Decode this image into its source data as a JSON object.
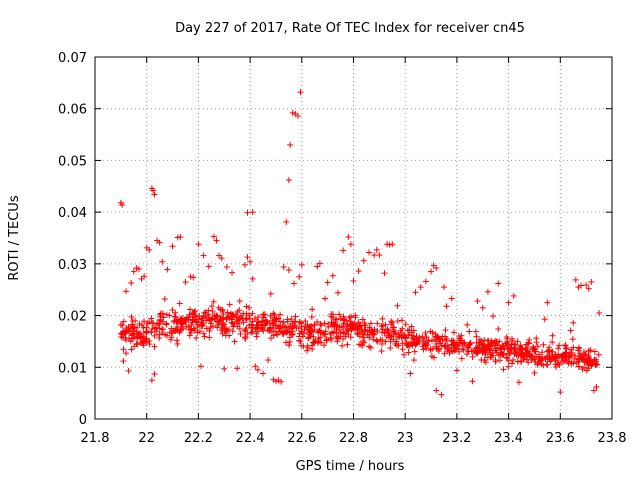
{
  "chart_data": {
    "type": "scatter",
    "title": "Day 227 of 2017, Rate Of TEC Index for receiver cn45",
    "xlabel": "GPS time / hours",
    "ylabel": "ROTI / TECUs",
    "xlim": [
      21.8,
      23.8
    ],
    "ylim": [
      0,
      0.07
    ],
    "xticks": [
      "21.8",
      "22",
      "22.2",
      "22.4",
      "22.6",
      "22.8",
      "23",
      "23.2",
      "23.4",
      "23.6",
      "23.8"
    ],
    "yticks": [
      "0",
      "0.01",
      "0.02",
      "0.03",
      "0.04",
      "0.05",
      "0.06",
      "0.07"
    ],
    "grid": true,
    "marker": "+",
    "color": "#ff0000",
    "series": [
      {
        "values": [
          [
            21.9,
            0.0418
          ],
          [
            21.905,
            0.0414
          ],
          [
            22.02,
            0.0446
          ],
          [
            22.025,
            0.0442
          ],
          [
            22.03,
            0.0434
          ],
          [
            22.39,
            0.0399
          ],
          [
            22.41,
            0.04
          ],
          [
            22.54,
            0.0381
          ],
          [
            22.55,
            0.0462
          ],
          [
            22.555,
            0.053
          ],
          [
            22.565,
            0.0592
          ],
          [
            22.575,
            0.059
          ],
          [
            22.585,
            0.0586
          ],
          [
            22.595,
            0.0632
          ],
          [
            21.9,
            0.0182
          ],
          [
            21.91,
            0.0112
          ],
          [
            21.92,
            0.0247
          ],
          [
            21.93,
            0.0093
          ],
          [
            21.94,
            0.0263
          ],
          [
            21.95,
            0.0285
          ],
          [
            21.96,
            0.0292
          ],
          [
            21.97,
            0.029
          ],
          [
            21.98,
            0.0271
          ],
          [
            21.99,
            0.0276
          ],
          [
            22.0,
            0.0331
          ],
          [
            22.01,
            0.0327
          ],
          [
            22.02,
            0.0075
          ],
          [
            22.03,
            0.0087
          ],
          [
            22.04,
            0.0345
          ],
          [
            22.05,
            0.0341
          ],
          [
            22.06,
            0.0304
          ],
          [
            22.07,
            0.0232
          ],
          [
            22.08,
            0.0289
          ],
          [
            22.1,
            0.0334
          ],
          [
            22.12,
            0.0351
          ],
          [
            22.13,
            0.0352
          ],
          [
            22.15,
            0.0265
          ],
          [
            22.17,
            0.0275
          ],
          [
            22.18,
            0.0274
          ],
          [
            22.2,
            0.0338
          ],
          [
            22.21,
            0.0102
          ],
          [
            22.22,
            0.0316
          ],
          [
            22.24,
            0.0295
          ],
          [
            22.26,
            0.0353
          ],
          [
            22.27,
            0.0345
          ],
          [
            22.28,
            0.0316
          ],
          [
            22.29,
            0.0311
          ],
          [
            22.3,
            0.0097
          ],
          [
            22.31,
            0.0294
          ],
          [
            22.33,
            0.0283
          ],
          [
            22.35,
            0.0098
          ],
          [
            22.36,
            0.0228
          ],
          [
            22.38,
            0.0298
          ],
          [
            22.39,
            0.0313
          ],
          [
            22.4,
            0.0304
          ],
          [
            22.41,
            0.0271
          ],
          [
            22.42,
            0.0102
          ],
          [
            22.43,
            0.0095
          ],
          [
            22.45,
            0.0088
          ],
          [
            22.47,
            0.0114
          ],
          [
            22.48,
            0.0242
          ],
          [
            22.49,
            0.0076
          ],
          [
            22.5,
            0.0073
          ],
          [
            22.51,
            0.0075
          ],
          [
            22.52,
            0.0072
          ],
          [
            22.53,
            0.0294
          ],
          [
            22.55,
            0.0288
          ],
          [
            22.57,
            0.0262
          ],
          [
            22.59,
            0.0275
          ],
          [
            22.6,
            0.0298
          ],
          [
            22.62,
            0.0132
          ],
          [
            22.64,
            0.0212
          ],
          [
            22.66,
            0.0295
          ],
          [
            22.67,
            0.0301
          ],
          [
            22.69,
            0.0233
          ],
          [
            22.7,
            0.0264
          ],
          [
            22.72,
            0.0277
          ],
          [
            22.74,
            0.0244
          ],
          [
            22.76,
            0.0326
          ],
          [
            22.78,
            0.0352
          ],
          [
            22.79,
            0.0338
          ],
          [
            22.8,
            0.0267
          ],
          [
            22.82,
            0.0286
          ],
          [
            22.84,
            0.0306
          ],
          [
            22.86,
            0.0322
          ],
          [
            22.88,
            0.0317
          ],
          [
            22.89,
            0.0327
          ],
          [
            22.9,
            0.0317
          ],
          [
            22.92,
            0.0282
          ],
          [
            22.93,
            0.0338
          ],
          [
            22.94,
            0.0337
          ],
          [
            22.95,
            0.0338
          ],
          [
            22.97,
            0.0219
          ],
          [
            22.99,
            0.0135
          ],
          [
            23.01,
            0.0171
          ],
          [
            23.02,
            0.0088
          ],
          [
            23.04,
            0.0245
          ],
          [
            23.06,
            0.0255
          ],
          [
            23.08,
            0.0266
          ],
          [
            23.1,
            0.0285
          ],
          [
            23.11,
            0.0297
          ],
          [
            23.12,
            0.0292
          ],
          [
            23.12,
            0.0055
          ],
          [
            23.14,
            0.0047
          ],
          [
            23.15,
            0.0255
          ],
          [
            23.16,
            0.0218
          ],
          [
            23.18,
            0.0233
          ],
          [
            23.2,
            0.0094
          ],
          [
            23.22,
            0.0135
          ],
          [
            23.24,
            0.0182
          ],
          [
            23.26,
            0.0073
          ],
          [
            23.28,
            0.0228
          ],
          [
            23.3,
            0.0215
          ],
          [
            23.32,
            0.0246
          ],
          [
            23.34,
            0.0199
          ],
          [
            23.36,
            0.0174
          ],
          [
            23.36,
            0.0262
          ],
          [
            23.38,
            0.0096
          ],
          [
            23.4,
            0.0225
          ],
          [
            23.42,
            0.0238
          ],
          [
            23.44,
            0.0071
          ],
          [
            23.46,
            0.0116
          ],
          [
            23.48,
            0.0153
          ],
          [
            23.5,
            0.0089
          ],
          [
            23.52,
            0.0116
          ],
          [
            23.54,
            0.0193
          ],
          [
            23.55,
            0.0225
          ],
          [
            23.57,
            0.0161
          ],
          [
            23.59,
            0.0108
          ],
          [
            23.6,
            0.0052
          ],
          [
            23.62,
            0.0143
          ],
          [
            23.64,
            0.0171
          ],
          [
            23.65,
            0.0186
          ],
          [
            23.66,
            0.0269
          ],
          [
            23.67,
            0.0255
          ],
          [
            23.68,
            0.0258
          ],
          [
            23.7,
            0.0259
          ],
          [
            23.71,
            0.0252
          ],
          [
            23.72,
            0.0265
          ],
          [
            23.73,
            0.0055
          ],
          [
            23.74,
            0.0062
          ],
          [
            23.75,
            0.0205
          ]
        ]
      }
    ]
  }
}
